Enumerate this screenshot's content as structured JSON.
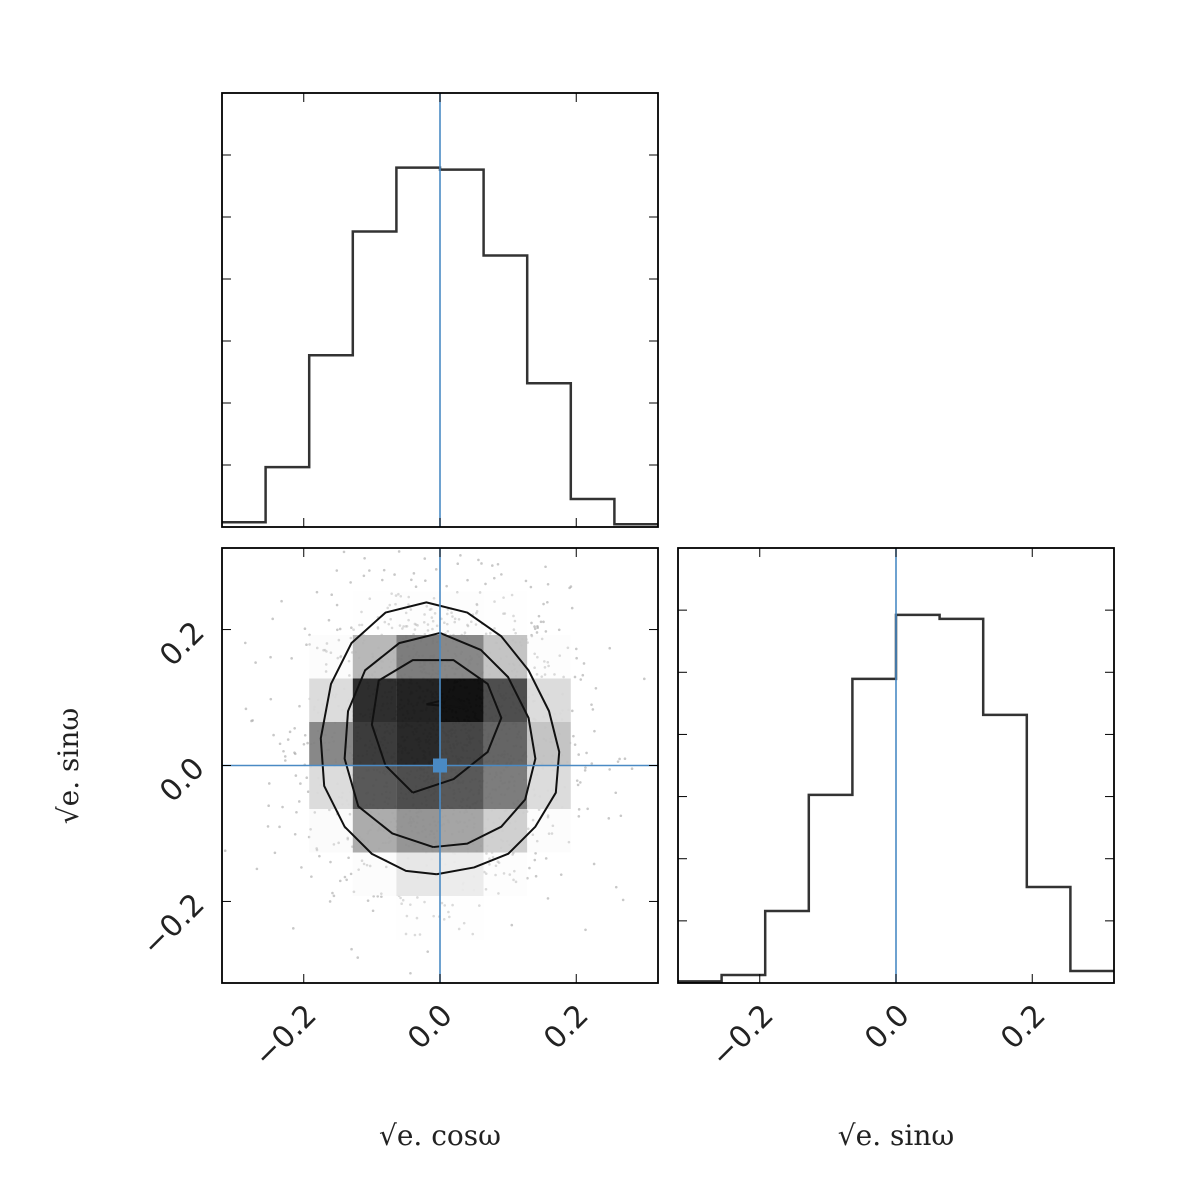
{
  "chart_data": [
    {
      "panel": "top-left",
      "type": "histogram",
      "bin_edges": [
        -0.32,
        -0.256,
        -0.192,
        -0.128,
        -0.064,
        0.0,
        0.064,
        0.128,
        0.192,
        0.256,
        0.32
      ],
      "values": [
        0.012,
        0.15,
        0.43,
        0.74,
        0.9,
        0.895,
        0.68,
        0.36,
        0.07,
        0.007
      ],
      "xlim": [
        -0.32,
        0.32
      ],
      "ylim": [
        0,
        1
      ],
      "truth_x": 0.0,
      "x_ticks": [
        -0.2,
        0.0,
        0.2
      ],
      "show_tick_labels": false
    },
    {
      "panel": "bottom-left",
      "type": "heatmap",
      "x_edges": [
        -0.32,
        -0.256,
        -0.192,
        -0.128,
        -0.064,
        0.0,
        0.064,
        0.128,
        0.192,
        0.256,
        0.32
      ],
      "y_edges": [
        -0.32,
        -0.256,
        -0.192,
        -0.128,
        -0.064,
        0.0,
        0.064,
        0.128,
        0.192,
        0.256,
        0.32
      ],
      "density_rows_top_to_bottom": [
        [
          0.0,
          0.0,
          0.0,
          0.0,
          0.0,
          0.0,
          0.0,
          0.0,
          0.0,
          0.0
        ],
        [
          0.0,
          0.0,
          0.0,
          0.01,
          0.03,
          0.03,
          0.01,
          0.0,
          0.0,
          0.0
        ],
        [
          0.0,
          0.0,
          0.04,
          0.3,
          0.55,
          0.5,
          0.25,
          0.03,
          0.0,
          0.0
        ],
        [
          0.0,
          0.0,
          0.15,
          0.88,
          0.93,
          1.0,
          0.75,
          0.15,
          0.0,
          0.0
        ],
        [
          0.0,
          0.0,
          0.5,
          0.82,
          0.9,
          0.78,
          0.65,
          0.25,
          0.0,
          0.0
        ],
        [
          0.0,
          0.0,
          0.15,
          0.7,
          0.75,
          0.7,
          0.55,
          0.15,
          0.0,
          0.0
        ],
        [
          0.0,
          0.0,
          0.05,
          0.35,
          0.45,
          0.38,
          0.2,
          0.04,
          0.0,
          0.0
        ],
        [
          0.0,
          0.0,
          0.0,
          0.04,
          0.1,
          0.08,
          0.02,
          0.0,
          0.0,
          0.0
        ],
        [
          0.0,
          0.0,
          0.0,
          0.0,
          0.01,
          0.01,
          0.0,
          0.0,
          0.0,
          0.0
        ],
        [
          0.0,
          0.0,
          0.0,
          0.0,
          0.0,
          0.0,
          0.0,
          0.0,
          0.0,
          0.0
        ]
      ],
      "contours": [
        [
          [
            -0.005,
            -0.16
          ],
          [
            0.05,
            -0.15
          ],
          [
            0.1,
            -0.13
          ],
          [
            0.14,
            -0.09
          ],
          [
            0.17,
            -0.04
          ],
          [
            0.175,
            0.02
          ],
          [
            0.16,
            0.08
          ],
          [
            0.13,
            0.14
          ],
          [
            0.09,
            0.19
          ],
          [
            0.04,
            0.225
          ],
          [
            -0.02,
            0.24
          ],
          [
            -0.08,
            0.225
          ],
          [
            -0.13,
            0.18
          ],
          [
            -0.16,
            0.12
          ],
          [
            -0.175,
            0.04
          ],
          [
            -0.17,
            -0.03
          ],
          [
            -0.14,
            -0.09
          ],
          [
            -0.1,
            -0.13
          ],
          [
            -0.05,
            -0.155
          ],
          [
            -0.005,
            -0.16
          ]
        ],
        [
          [
            -0.01,
            -0.12
          ],
          [
            0.04,
            -0.115
          ],
          [
            0.09,
            -0.09
          ],
          [
            0.125,
            -0.05
          ],
          [
            0.14,
            0.01
          ],
          [
            0.13,
            0.07
          ],
          [
            0.1,
            0.13
          ],
          [
            0.06,
            0.17
          ],
          [
            0.0,
            0.195
          ],
          [
            -0.06,
            0.18
          ],
          [
            -0.11,
            0.14
          ],
          [
            -0.135,
            0.08
          ],
          [
            -0.14,
            0.01
          ],
          [
            -0.12,
            -0.06
          ],
          [
            -0.07,
            -0.1
          ],
          [
            -0.01,
            -0.12
          ]
        ],
        [
          [
            -0.04,
            -0.04
          ],
          [
            0.02,
            -0.02
          ],
          [
            0.07,
            0.02
          ],
          [
            0.09,
            0.07
          ],
          [
            0.07,
            0.12
          ],
          [
            0.02,
            0.155
          ],
          [
            -0.04,
            0.155
          ],
          [
            -0.09,
            0.125
          ],
          [
            -0.1,
            0.06
          ],
          [
            -0.08,
            0.0
          ],
          [
            -0.04,
            -0.04
          ]
        ],
        [
          [
            -0.02,
            0.09
          ],
          [
            0.04,
            0.085
          ],
          [
            0.02,
            0.1
          ],
          [
            -0.02,
            0.09
          ]
        ]
      ],
      "scatter_rx": 0.19,
      "scatter_ry": 0.22,
      "scatter_n": 1800,
      "xlim": [
        -0.32,
        0.32
      ],
      "ylim": [
        -0.32,
        0.32
      ],
      "truth": [
        0.0,
        0.0
      ],
      "x_ticks": [
        -0.2,
        0.0,
        0.2
      ],
      "y_ticks": [
        -0.2,
        0.0,
        0.2
      ],
      "x_tick_labels": [
        "−0.2",
        "0.0",
        "0.2"
      ],
      "y_tick_labels": [
        "−0.2",
        "0.0",
        "0.2"
      ],
      "xlabel": "√e. cosω",
      "ylabel": "√e. sinω"
    },
    {
      "panel": "bottom-right",
      "type": "histogram",
      "bin_edges": [
        -0.32,
        -0.256,
        -0.192,
        -0.128,
        -0.064,
        0.0,
        0.064,
        0.128,
        0.192,
        0.256,
        0.32
      ],
      "values": [
        0.004,
        0.02,
        0.18,
        0.47,
        0.76,
        0.92,
        0.91,
        0.67,
        0.24,
        0.03
      ],
      "xlim": [
        -0.32,
        0.32
      ],
      "ylim": [
        0,
        1
      ],
      "truth_x": 0.0,
      "x_ticks": [
        -0.2,
        0.0,
        0.2
      ],
      "x_tick_labels": [
        "−0.2",
        "0.0",
        "0.2"
      ],
      "xlabel": "√e. sinω"
    }
  ],
  "colors": {
    "truth": "#4a8ac4",
    "line": "#333333",
    "axes": "#000000"
  }
}
